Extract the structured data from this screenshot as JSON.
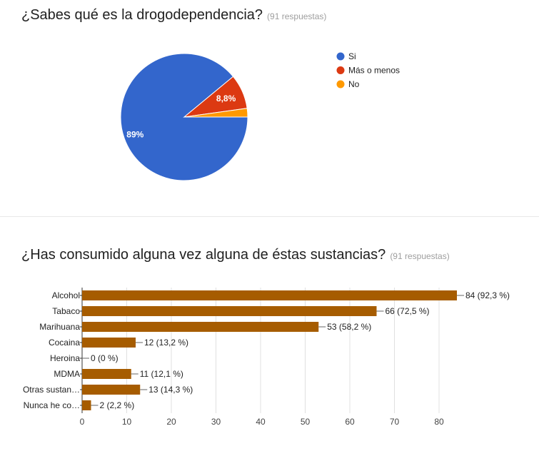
{
  "questions": [
    {
      "title": "¿Sabes qué es la drogodependencia?",
      "responses": "(91 respuestas)"
    },
    {
      "title": "¿Has consumido alguna vez alguna de éstas sustancias?",
      "responses": "(91 respuestas)"
    }
  ],
  "chart_data": [
    {
      "type": "pie",
      "categories": [
        "Si",
        "Más o menos",
        "No"
      ],
      "values": [
        89.0,
        8.8,
        2.2
      ],
      "slice_labels": [
        "89%",
        "8,8%",
        ""
      ],
      "colors": [
        "#3366cc",
        "#dc3912",
        "#ff9900"
      ],
      "legend_position": "right"
    },
    {
      "type": "bar",
      "orientation": "horizontal",
      "categories": [
        "Alcohol",
        "Tabaco",
        "Marihuana",
        "Cocaina",
        "Heroina",
        "MDMA",
        "Otras sustan…",
        "Nunca he co…"
      ],
      "values": [
        84,
        66,
        53,
        12,
        0,
        11,
        13,
        2
      ],
      "value_labels": [
        "84 (92,3 %)",
        "66 (72,5 %)",
        "53 (58,2 %)",
        "12 (13,2 %)",
        "0 (0 %)",
        "11 (12,1 %)",
        "13 (14,3 %)",
        "2 (2,2 %)"
      ],
      "xticks": [
        0,
        10,
        20,
        30,
        40,
        50,
        60,
        70,
        80
      ],
      "xlim": [
        0,
        85
      ],
      "color": "#a65c00",
      "grid": true
    }
  ]
}
